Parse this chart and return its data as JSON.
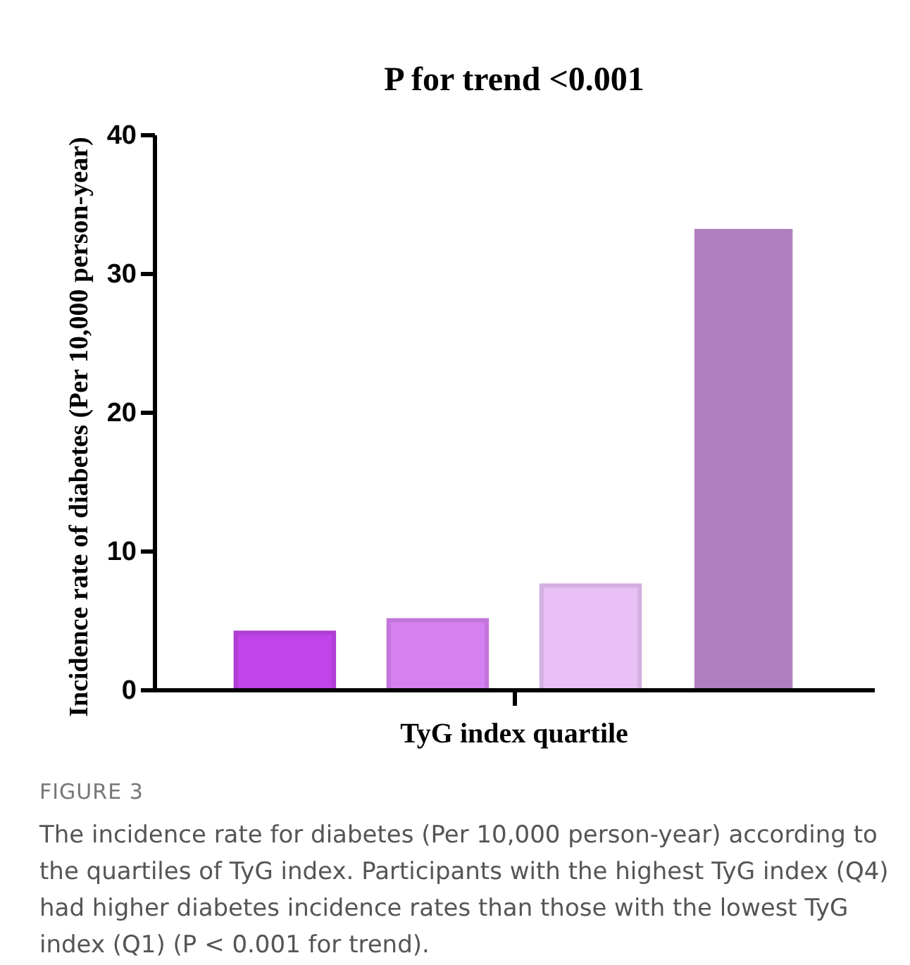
{
  "chart_data": {
    "type": "bar",
    "title": "P for trend <0.001",
    "xlabel": "TyG index quartile",
    "ylabel": "Incidence rate of diabetes (Per 10,000 person-year)",
    "categories": [
      null,
      null,
      null,
      null
    ],
    "values": [
      4.3,
      5.2,
      7.7,
      33.4
    ],
    "colors": [
      "#c044e8",
      "#d580f0",
      "#e8c0f5",
      "#b07fc0"
    ],
    "ylim": [
      0,
      40
    ],
    "yticks": [
      0,
      10,
      20,
      30,
      40
    ],
    "grid": false,
    "annotations": [
      "FIGURE 3",
      "The incidence rate for diabetes (Per 10,000 person-year) according to the quartiles of TyG index. Participants with the highest TyG index (Q4) had higher diabetes incidence rates than those with the lowest TyG index (Q1) (P < 0.001 for trend)."
    ]
  }
}
